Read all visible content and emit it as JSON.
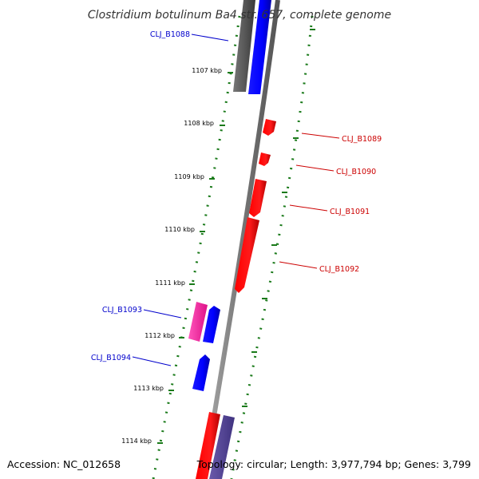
{
  "title": "Clostridium botulinum Ba4 str. 657, complete genome",
  "footer": {
    "accession": "Accession: NC_012658",
    "summary": "Topology: circular; Length: 3,977,794 bp; Genes: 3,799"
  },
  "colors": {
    "forward_gene": "#ff0000",
    "reverse_gene": "#0000ff",
    "pink_gene": "#ff33aa",
    "purple_gene": "#55449a",
    "grey_gene": "#555555",
    "backbone": "#888888",
    "tick_marks": "#1a7a1a",
    "forward_label": "#cc0000",
    "reverse_label": "#0000cc"
  },
  "scale_labels": [
    "1107 kbp",
    "1108 kbp",
    "1109 kbp",
    "1110 kbp",
    "1111 kbp",
    "1112 kbp",
    "1113 kbp",
    "1114 kbp"
  ],
  "gene_labels": {
    "reverse": [
      "CLJ_B1088",
      "CLJ_B1093",
      "CLJ_B1094"
    ],
    "forward": [
      "CLJ_B1089",
      "CLJ_B1090",
      "CLJ_B1091",
      "CLJ_B1092"
    ]
  }
}
